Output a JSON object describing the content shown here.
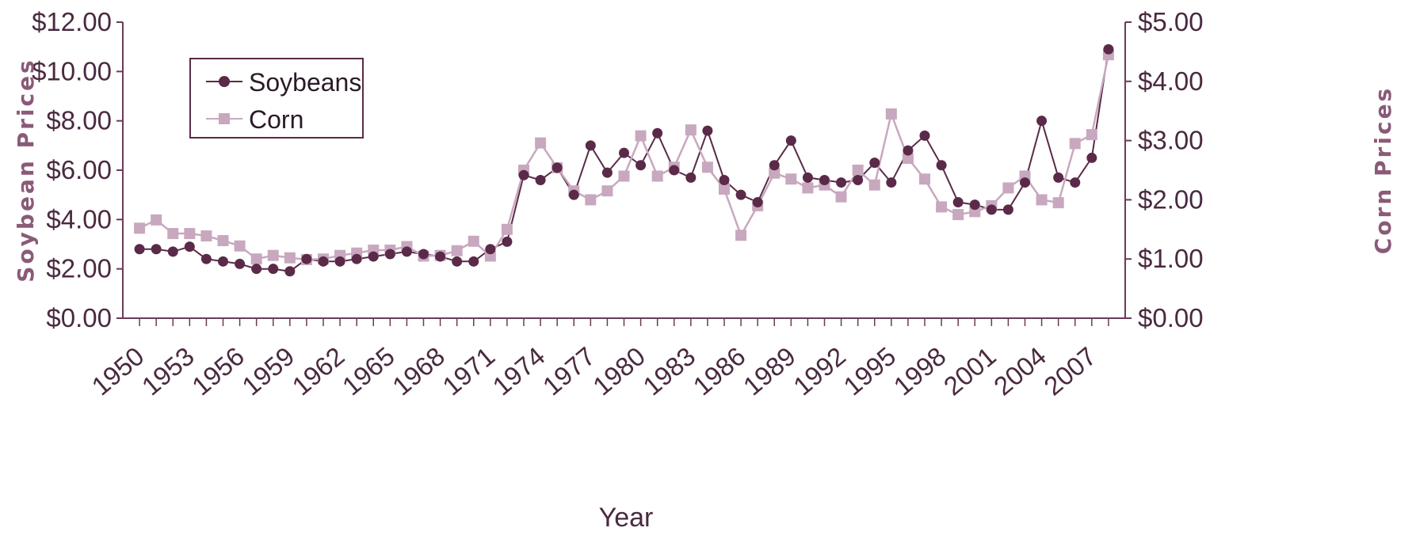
{
  "chart_data": {
    "type": "line",
    "title": "",
    "xlabel": "Year",
    "ylabel_left": "Soybean Prices",
    "ylabel_right": "Corn Prices",
    "x_tick_labels": [
      "1950",
      "1953",
      "1956",
      "1959",
      "1962",
      "1965",
      "1968",
      "1971",
      "1974",
      "1977",
      "1980",
      "1983",
      "1986",
      "1989",
      "1992",
      "1995",
      "1998",
      "2001",
      "2004",
      "2007"
    ],
    "y_left_tick_labels": [
      "$0.00",
      "$2.00",
      "$4.00",
      "$6.00",
      "$8.00",
      "$10.00",
      "$12.00"
    ],
    "y_right_tick_labels": [
      "$0.00",
      "$1.00",
      "$2.00",
      "$3.00",
      "$4.00",
      "$5.00"
    ],
    "ylim_left": [
      0,
      12
    ],
    "ylim_right": [
      0,
      5
    ],
    "xlim": [
      1949,
      2009
    ],
    "grid": false,
    "legend_position": "top-left",
    "x": [
      1950,
      1951,
      1952,
      1953,
      1954,
      1955,
      1956,
      1957,
      1958,
      1959,
      1960,
      1961,
      1962,
      1963,
      1964,
      1965,
      1966,
      1967,
      1968,
      1969,
      1970,
      1971,
      1972,
      1973,
      1974,
      1975,
      1976,
      1977,
      1978,
      1979,
      1980,
      1981,
      1982,
      1983,
      1984,
      1985,
      1986,
      1987,
      1988,
      1989,
      1990,
      1991,
      1992,
      1993,
      1994,
      1995,
      1996,
      1997,
      1998,
      1999,
      2000,
      2001,
      2002,
      2003,
      2004,
      2005,
      2006,
      2007,
      2008
    ],
    "series": [
      {
        "name": "Soybeans",
        "axis": "left",
        "color": "#5a2a48",
        "marker": "circle",
        "values": [
          2.8,
          2.8,
          2.7,
          2.9,
          2.4,
          2.3,
          2.2,
          2.0,
          2.0,
          1.9,
          2.4,
          2.3,
          2.3,
          2.4,
          2.5,
          2.6,
          2.7,
          2.6,
          2.5,
          2.3,
          2.3,
          2.8,
          3.1,
          5.8,
          5.6,
          6.1,
          5.0,
          7.0,
          5.9,
          6.7,
          6.2,
          7.5,
          6.0,
          5.7,
          7.6,
          5.6,
          5.0,
          4.7,
          6.2,
          7.2,
          5.7,
          5.6,
          5.5,
          5.6,
          6.3,
          5.5,
          6.8,
          7.4,
          6.2,
          4.7,
          4.6,
          4.4,
          4.4,
          5.5,
          8.0,
          5.7,
          5.5,
          6.5,
          10.9
        ]
      },
      {
        "name": "Corn",
        "axis": "right",
        "color": "#c8a8be",
        "marker": "square",
        "values": [
          1.52,
          1.66,
          1.43,
          1.43,
          1.39,
          1.31,
          1.22,
          1.0,
          1.06,
          1.02,
          0.99,
          1.0,
          1.06,
          1.1,
          1.15,
          1.15,
          1.21,
          1.05,
          1.06,
          1.14,
          1.3,
          1.05,
          1.5,
          2.5,
          2.96,
          2.54,
          2.15,
          2.0,
          2.15,
          2.4,
          3.08,
          2.4,
          2.55,
          3.18,
          2.55,
          2.18,
          1.4,
          1.9,
          2.45,
          2.35,
          2.2,
          2.25,
          2.05,
          2.5,
          2.25,
          3.45,
          2.7,
          2.35,
          1.88,
          1.75,
          1.8,
          1.9,
          2.2,
          2.4,
          2.0,
          1.95,
          2.95,
          3.1,
          4.45
        ]
      }
    ]
  }
}
